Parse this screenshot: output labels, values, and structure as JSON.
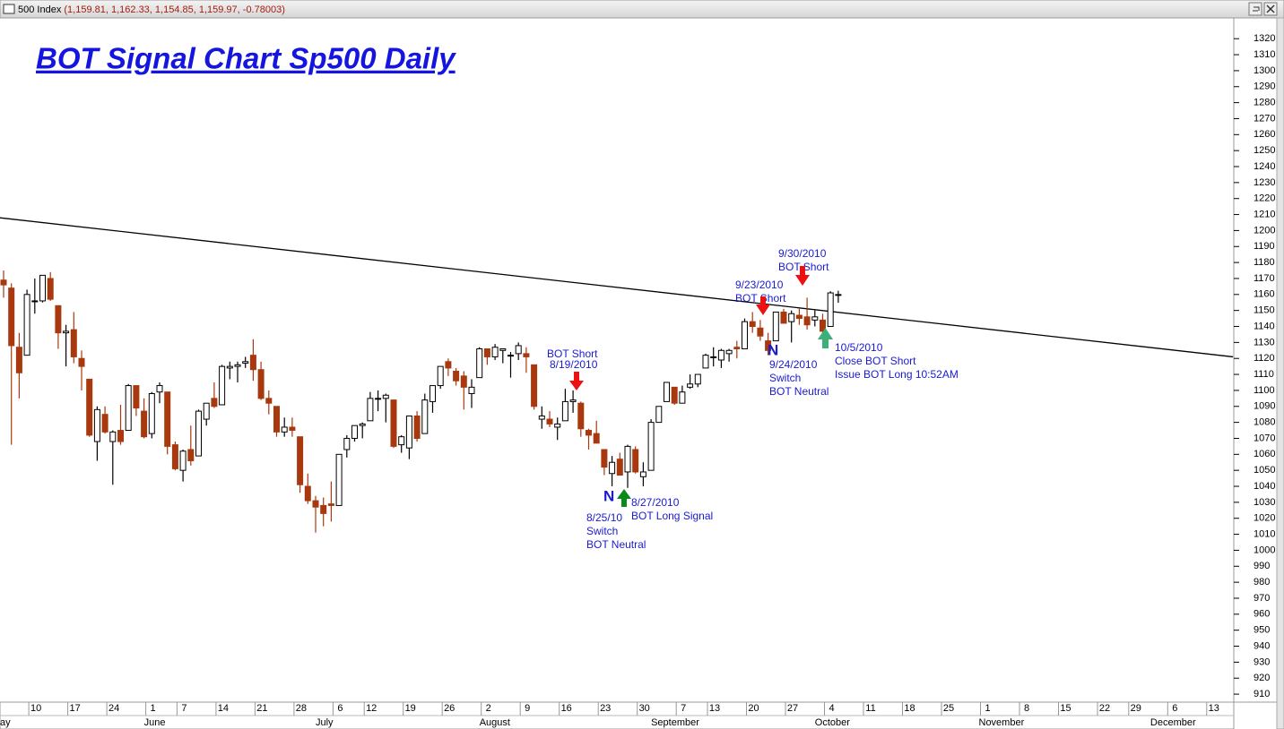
{
  "chart_data": {
    "type": "candlestick",
    "header": "500 Index",
    "header_values": "(1,159.81, 1,162.33, 1,154.85, 1,159.97, -0.78003)",
    "title": "BOT Signal Chart Sp500 Daily",
    "up_color": "#ffffff",
    "down_color": "#a8380e",
    "ylim": [
      905,
      1333
    ],
    "yticks": [
      910,
      920,
      930,
      940,
      950,
      960,
      970,
      980,
      990,
      1000,
      1010,
      1020,
      1030,
      1040,
      1050,
      1060,
      1070,
      1080,
      1090,
      1100,
      1110,
      1120,
      1130,
      1140,
      1150,
      1160,
      1170,
      1180,
      1190,
      1200,
      1210,
      1220,
      1230,
      1240,
      1250,
      1260,
      1270,
      1280,
      1290,
      1300,
      1310,
      1320
    ],
    "categories": [
      null,
      null,
      null,
      "10",
      null,
      null,
      null,
      null,
      "17",
      null,
      null,
      null,
      null,
      "24",
      null,
      null,
      null,
      null,
      "1",
      null,
      null,
      null,
      "7",
      null,
      null,
      null,
      null,
      "14",
      null,
      null,
      null,
      null,
      "21",
      null,
      null,
      null,
      null,
      "28",
      null,
      null,
      null,
      null,
      "6",
      null,
      null,
      null,
      "12",
      null,
      null,
      null,
      null,
      "19",
      null,
      null,
      null,
      null,
      "26",
      null,
      null,
      null,
      null,
      "2",
      null,
      null,
      null,
      null,
      "9",
      null,
      null,
      null,
      null,
      "16",
      null,
      null,
      null,
      null,
      "23",
      null,
      null,
      null,
      null,
      "30",
      null,
      null,
      null,
      null,
      "7",
      null,
      null,
      null,
      "13",
      null,
      null,
      null,
      null,
      "20",
      null,
      null,
      null,
      null,
      "27",
      null,
      null,
      null,
      null,
      "4",
      null,
      null,
      null,
      null,
      "11",
      null,
      null,
      null,
      null,
      "18",
      null,
      null,
      null,
      null,
      "25",
      null,
      null,
      null,
      null,
      "1",
      null,
      null,
      null,
      null,
      "8",
      null,
      null,
      null,
      null,
      "15",
      null,
      null,
      null,
      null,
      "22",
      null,
      null,
      null,
      "29",
      null,
      null,
      null,
      null,
      "6",
      null,
      null,
      null,
      null,
      "13",
      null,
      null
    ],
    "months": [
      "ay",
      null,
      null,
      null,
      null,
      null,
      null,
      null,
      null,
      null,
      null,
      null,
      null,
      null,
      null,
      null,
      null,
      null,
      "June",
      null,
      null,
      null,
      null,
      null,
      null,
      null,
      null,
      null,
      null,
      null,
      null,
      null,
      null,
      null,
      null,
      null,
      null,
      null,
      null,
      null,
      "July",
      null,
      null,
      null,
      null,
      null,
      null,
      null,
      null,
      null,
      null,
      null,
      null,
      null,
      null,
      null,
      null,
      null,
      null,
      null,
      null,
      "August",
      null,
      null,
      null,
      null,
      null,
      null,
      null,
      null,
      null,
      null,
      null,
      null,
      null,
      null,
      null,
      null,
      null,
      null,
      null,
      null,
      null,
      "September",
      null,
      null,
      null,
      null,
      null,
      null,
      null,
      null,
      null,
      null,
      null,
      null,
      null,
      null,
      null,
      null,
      null,
      null,
      null,
      null,
      "October",
      null,
      null,
      null,
      null,
      null,
      null,
      null,
      null,
      null,
      null,
      null,
      null,
      null,
      null,
      null,
      null,
      null,
      null,
      null,
      null,
      "November",
      null,
      null,
      null,
      null,
      null,
      null,
      null,
      null,
      null,
      null,
      null,
      null,
      null,
      null,
      null,
      null,
      null,
      null,
      null,
      null,
      null,
      "December",
      null,
      null,
      null,
      null,
      null,
      null,
      null,
      null,
      null
    ],
    "ohlc": [
      [
        1169,
        1175,
        1158,
        1166
      ],
      [
        1164,
        1167,
        1066,
        1128
      ],
      [
        1127,
        1136,
        1095,
        1111
      ],
      [
        1122,
        1163,
        1122,
        1160
      ],
      [
        1156,
        1170,
        1148,
        1156
      ],
      [
        1156,
        1172,
        1155,
        1172
      ],
      [
        1170,
        1174,
        1156,
        1157
      ],
      [
        1153,
        1153,
        1126,
        1136
      ],
      [
        1136,
        1141,
        1115,
        1137
      ],
      [
        1138,
        1149,
        1117,
        1121
      ],
      [
        1120,
        1125,
        1100,
        1115
      ],
      [
        1107,
        1107,
        1071,
        1072
      ],
      [
        1068,
        1090,
        1056,
        1088
      ],
      [
        1085,
        1090,
        1073,
        1074
      ],
      [
        1068,
        1075,
        1041,
        1074
      ],
      [
        1075,
        1091,
        1066,
        1068
      ],
      [
        1075,
        1104,
        1075,
        1103
      ],
      [
        1103,
        1103,
        1084,
        1089
      ],
      [
        1087,
        1095,
        1070,
        1071
      ],
      [
        1073,
        1099,
        1070,
        1098
      ],
      [
        1099,
        1105,
        1092,
        1103
      ],
      [
        1099,
        1099,
        1060,
        1065
      ],
      [
        1066,
        1068,
        1050,
        1051
      ],
      [
        1050,
        1063,
        1043,
        1062
      ],
      [
        1063,
        1078,
        1053,
        1056
      ],
      [
        1059,
        1088,
        1059,
        1087
      ],
      [
        1082,
        1092,
        1078,
        1092
      ],
      [
        1095,
        1105,
        1089,
        1090
      ],
      [
        1091,
        1116,
        1091,
        1115
      ],
      [
        1114,
        1118,
        1107,
        1115
      ],
      [
        1115,
        1118,
        1105,
        1116
      ],
      [
        1117,
        1121,
        1114,
        1118
      ],
      [
        1122,
        1132,
        1106,
        1113
      ],
      [
        1113,
        1118,
        1094,
        1095
      ],
      [
        1095,
        1100,
        1085,
        1092
      ],
      [
        1090,
        1090,
        1071,
        1074
      ],
      [
        1074,
        1083,
        1071,
        1077
      ],
      [
        1077,
        1083,
        1071,
        1075
      ],
      [
        1071,
        1071,
        1036,
        1041
      ],
      [
        1040,
        1048,
        1029,
        1031
      ],
      [
        1031,
        1034,
        1011,
        1027
      ],
      [
        1028,
        1033,
        1015,
        1023
      ],
      [
        1029,
        1043,
        1018,
        1028
      ],
      [
        1028,
        1060,
        1028,
        1060
      ],
      [
        1063,
        1072,
        1058,
        1070
      ],
      [
        1070,
        1078,
        1068,
        1078
      ],
      [
        1078,
        1080,
        1070,
        1079
      ],
      [
        1081,
        1099,
        1081,
        1095
      ],
      [
        1095,
        1100,
        1087,
        1095
      ],
      [
        1095,
        1098,
        1080,
        1097
      ],
      [
        1094,
        1094,
        1064,
        1065
      ],
      [
        1066,
        1072,
        1061,
        1071
      ],
      [
        1064,
        1084,
        1057,
        1084
      ],
      [
        1084,
        1087,
        1068,
        1070
      ],
      [
        1073,
        1098,
        1073,
        1094
      ],
      [
        1093,
        1103,
        1086,
        1103
      ],
      [
        1103,
        1115,
        1101,
        1115
      ],
      [
        1118,
        1120,
        1109,
        1114
      ],
      [
        1112,
        1114,
        1103,
        1106
      ],
      [
        1109,
        1112,
        1088,
        1102
      ],
      [
        1098,
        1107,
        1089,
        1102
      ],
      [
        1108,
        1127,
        1108,
        1126
      ],
      [
        1126,
        1126,
        1116,
        1121
      ],
      [
        1121,
        1129,
        1119,
        1127
      ],
      [
        1125,
        1126,
        1117,
        1126
      ],
      [
        1122,
        1124,
        1108,
        1122
      ],
      [
        1123,
        1130,
        1119,
        1128
      ],
      [
        1123,
        1127,
        1111,
        1121
      ],
      [
        1116,
        1116,
        1088,
        1090
      ],
      [
        1082,
        1090,
        1076,
        1084
      ],
      [
        1082,
        1087,
        1077,
        1079
      ],
      [
        1077,
        1083,
        1069,
        1079
      ],
      [
        1081,
        1101,
        1081,
        1093
      ],
      [
        1093,
        1100,
        1086,
        1094
      ],
      [
        1092,
        1093,
        1071,
        1076
      ],
      [
        1075,
        1076,
        1063,
        1072
      ],
      [
        1073,
        1081,
        1067,
        1067
      ],
      [
        1063,
        1063,
        1047,
        1052
      ],
      [
        1048,
        1059,
        1040,
        1055
      ],
      [
        1057,
        1061,
        1047,
        1047
      ],
      [
        1049,
        1066,
        1039,
        1065
      ],
      [
        1063,
        1065,
        1048,
        1049
      ],
      [
        1046,
        1055,
        1040,
        1049
      ],
      [
        1050,
        1082,
        1050,
        1080
      ],
      [
        1080,
        1090,
        1080,
        1090
      ],
      [
        1093,
        1105,
        1093,
        1105
      ],
      [
        1102,
        1102,
        1091,
        1092
      ],
      [
        1092,
        1103,
        1092,
        1099
      ],
      [
        1102,
        1110,
        1101,
        1104
      ],
      [
        1104,
        1110,
        1102,
        1110
      ],
      [
        1114,
        1123,
        1114,
        1122
      ],
      [
        1121,
        1127,
        1115,
        1121
      ],
      [
        1119,
        1126,
        1114,
        1125
      ],
      [
        1123,
        1126,
        1118,
        1125
      ],
      [
        1127,
        1131,
        1120,
        1126
      ],
      [
        1126,
        1145,
        1126,
        1143
      ],
      [
        1143,
        1149,
        1136,
        1140
      ],
      [
        1139,
        1144,
        1131,
        1134
      ],
      [
        1131,
        1136,
        1122,
        1125
      ],
      [
        1131,
        1149,
        1131,
        1149
      ],
      [
        1149,
        1151,
        1142,
        1142
      ],
      [
        1143,
        1150,
        1130,
        1148
      ],
      [
        1147,
        1151,
        1141,
        1145
      ],
      [
        1146,
        1158,
        1138,
        1141
      ],
      [
        1144,
        1150,
        1140,
        1146
      ],
      [
        1144,
        1148,
        1131,
        1137
      ],
      [
        1140,
        1162,
        1140,
        1161
      ],
      [
        1159.81,
        1162.33,
        1154.85,
        1159.97
      ],
      null,
      null,
      null,
      null,
      null,
      null,
      null,
      null,
      null,
      null,
      null,
      null,
      null,
      null,
      null,
      null,
      null,
      null,
      null,
      null,
      null,
      null,
      null,
      null,
      null,
      null,
      null,
      null,
      null,
      null,
      null,
      null,
      null,
      null,
      null,
      null,
      null,
      null,
      null,
      null,
      null,
      null,
      null,
      null,
      null,
      null,
      null,
      null,
      null
    ],
    "trendline": {
      "start": [
        -0.5,
        1208
      ],
      "end": [
        157.6,
        1121
      ]
    },
    "annotations": {
      "a1": [
        "BOT Short",
        "8/19/2010"
      ],
      "a2": [
        "8/25/10",
        "Switch",
        "BOT Neutral"
      ],
      "a3": [
        "8/27/2010",
        "BOT Long Signal"
      ],
      "a4": [
        "9/23/2010",
        "BOT Short"
      ],
      "a5": [
        "9/30/2010",
        "BOT Short"
      ],
      "a6": [
        "9/24/2010",
        "Switch",
        "BOT Neutral"
      ],
      "a7": [
        "10/5/2010",
        "Close BOT Short",
        "Issue BOT Long 10:52AM"
      ],
      "n": "N"
    }
  }
}
